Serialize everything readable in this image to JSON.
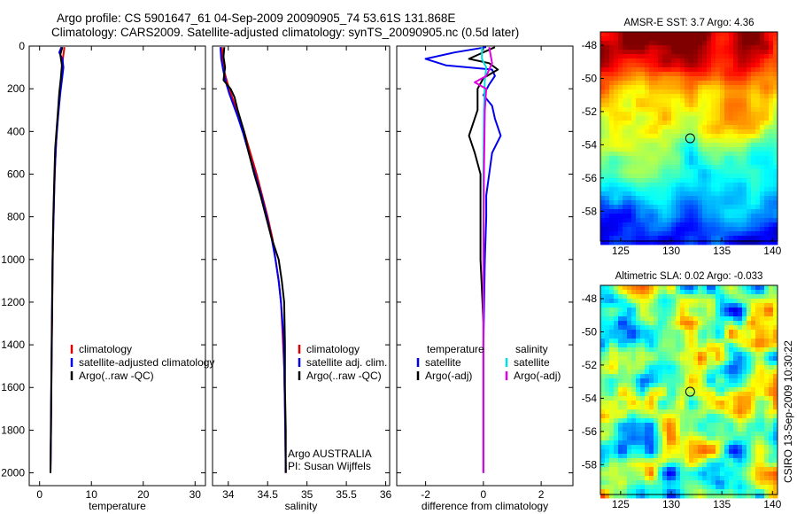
{
  "header": {
    "line1": "Argo profile: CS 5901647_61 04-Sep-2009 20090905_74 53.61S 131.868E",
    "line2": "Climatology: CARS2009. Satellite-adjusted climatology: synTS_20090905.nc (0.5d later)"
  },
  "side_text": "CSIRO 13-Sep-2009 10:30:22",
  "colors": {
    "climatology": "#e00000",
    "satellite": "#0000ee",
    "argo": "#000000",
    "sat_salinity": "#00e0e0",
    "argo_salinity": "#e000e0"
  },
  "chart_data": [
    {
      "id": "temperature",
      "type": "line",
      "xlabel": "temperature",
      "ylabel": "",
      "xlim": [
        -2,
        32
      ],
      "ylim": [
        2060,
        0
      ],
      "xticks": [
        0,
        10,
        20,
        30
      ],
      "yticks": [
        0,
        200,
        400,
        600,
        800,
        1000,
        1200,
        1400,
        1600,
        1800,
        2000
      ],
      "legend": {
        "placement": "lower-right",
        "entries": [
          "climatology",
          "satellite-adjusted climatology",
          "Argo(..raw -QC)"
        ]
      },
      "series": [
        {
          "name": "climatology",
          "color": "#e00000",
          "points": [
            [
              4.8,
              5
            ],
            [
              4.6,
              40
            ],
            [
              4.4,
              80
            ],
            [
              4.3,
              130
            ],
            [
              4.1,
              180
            ],
            [
              3.7,
              280
            ],
            [
              3.3,
              400
            ],
            [
              3.0,
              550
            ],
            [
              2.8,
              700
            ],
            [
              2.6,
              900
            ],
            [
              2.5,
              1100
            ],
            [
              2.4,
              1300
            ],
            [
              2.3,
              1500
            ],
            [
              2.2,
              1800
            ],
            [
              2.1,
              2000
            ]
          ]
        },
        {
          "name": "satellite-adjusted climatology",
          "color": "#0000ee",
          "points": [
            [
              4.2,
              5
            ],
            [
              3.8,
              30
            ],
            [
              4.4,
              60
            ],
            [
              4.6,
              100
            ],
            [
              4.3,
              160
            ],
            [
              4.0,
              220
            ],
            [
              3.6,
              320
            ],
            [
              3.2,
              450
            ],
            [
              2.9,
              600
            ],
            [
              2.7,
              800
            ],
            [
              2.5,
              1000
            ],
            [
              2.4,
              1200
            ],
            [
              2.3,
              1450
            ],
            [
              2.2,
              1700
            ],
            [
              2.1,
              2000
            ]
          ]
        },
        {
          "name": "Argo(..raw -QC)",
          "color": "#000000",
          "points": [
            [
              4.4,
              5
            ],
            [
              4.0,
              40
            ],
            [
              4.3,
              90
            ],
            [
              4.1,
              150
            ],
            [
              3.8,
              220
            ],
            [
              3.5,
              320
            ],
            [
              3.0,
              480
            ],
            [
              2.8,
              650
            ],
            [
              2.6,
              850
            ],
            [
              2.5,
              1050
            ],
            [
              2.4,
              1250
            ],
            [
              2.3,
              1500
            ],
            [
              2.2,
              1800
            ],
            [
              2.1,
              2000
            ]
          ]
        }
      ]
    },
    {
      "id": "salinity",
      "type": "line",
      "xlabel": "salinity",
      "ylabel": "",
      "xlim": [
        33.8,
        36.05
      ],
      "ylim": [
        2060,
        0
      ],
      "xticks": [
        34,
        34.5,
        35,
        35.5,
        36
      ],
      "legend": {
        "placement": "lower-right",
        "entries": [
          "climatology",
          "satellite adj. clim.",
          "Argo(..raw -QC)"
        ]
      },
      "annotation": [
        "Argo AUSTRALIA",
        "PI: Susan Wijffels"
      ],
      "series": [
        {
          "name": "climatology",
          "color": "#e00000",
          "points": [
            [
              33.92,
              5
            ],
            [
              33.93,
              60
            ],
            [
              33.95,
              120
            ],
            [
              33.98,
              160
            ],
            [
              34.02,
              210
            ],
            [
              34.07,
              260
            ],
            [
              34.13,
              320
            ],
            [
              34.2,
              400
            ],
            [
              34.28,
              500
            ],
            [
              34.36,
              600
            ],
            [
              34.43,
              700
            ],
            [
              34.5,
              800
            ],
            [
              34.56,
              900
            ],
            [
              34.6,
              1000
            ],
            [
              34.64,
              1100
            ],
            [
              34.67,
              1200
            ],
            [
              34.69,
              1350
            ],
            [
              34.71,
              1500
            ],
            [
              34.72,
              1700
            ],
            [
              34.73,
              2000
            ]
          ]
        },
        {
          "name": "satellite adj. clim.",
          "color": "#0000ee",
          "points": [
            [
              33.9,
              5
            ],
            [
              33.91,
              60
            ],
            [
              33.94,
              120
            ],
            [
              33.97,
              170
            ],
            [
              34.01,
              220
            ],
            [
              34.06,
              270
            ],
            [
              34.12,
              330
            ],
            [
              34.19,
              410
            ],
            [
              34.26,
              500
            ],
            [
              34.34,
              600
            ],
            [
              34.42,
              700
            ],
            [
              34.49,
              800
            ],
            [
              34.55,
              900
            ],
            [
              34.6,
              1000
            ],
            [
              34.64,
              1100
            ],
            [
              34.67,
              1200
            ],
            [
              34.7,
              1350
            ],
            [
              34.71,
              1500
            ],
            [
              34.72,
              1700
            ],
            [
              34.73,
              2000
            ]
          ]
        },
        {
          "name": "Argo(..raw -QC)",
          "color": "#000000",
          "points": [
            [
              33.95,
              5
            ],
            [
              33.94,
              50
            ],
            [
              33.96,
              100
            ],
            [
              33.94,
              160
            ],
            [
              34.03,
              200
            ],
            [
              34.08,
              240
            ],
            [
              34.12,
              300
            ],
            [
              34.2,
              400
            ],
            [
              34.26,
              500
            ],
            [
              34.33,
              600
            ],
            [
              34.41,
              700
            ],
            [
              34.48,
              800
            ],
            [
              34.55,
              900
            ],
            [
              34.64,
              1000
            ],
            [
              34.68,
              1100
            ],
            [
              34.71,
              1200
            ],
            [
              34.72,
              1400
            ],
            [
              34.72,
              1600
            ],
            [
              34.73,
              1800
            ],
            [
              34.73,
              2000
            ]
          ]
        }
      ]
    },
    {
      "id": "difference",
      "type": "line",
      "xlabel": "difference from climatology",
      "ylabel": "",
      "xlim": [
        -3,
        3.1
      ],
      "ylim": [
        2060,
        0
      ],
      "xticks": [
        -2,
        0,
        2
      ],
      "legend": {
        "placement": "lower-center",
        "groups": [
          {
            "header": "temperature",
            "entries": [
              "satellite",
              "Argo(-adj)"
            ]
          },
          {
            "header": "salinity",
            "entries": [
              "satellite",
              "Argo(-adj)"
            ]
          }
        ]
      },
      "series": [
        {
          "name": "temperature satellite",
          "color": "#0000ee",
          "points": [
            [
              0.1,
              5
            ],
            [
              -1.0,
              30
            ],
            [
              -2.0,
              60
            ],
            [
              -1.3,
              90
            ],
            [
              0.3,
              110
            ],
            [
              0.4,
              140
            ],
            [
              0.2,
              180
            ],
            [
              0.0,
              230
            ],
            [
              0.3,
              280
            ],
            [
              0.4,
              340
            ],
            [
              0.6,
              420
            ],
            [
              0.3,
              500
            ],
            [
              0.2,
              600
            ],
            [
              0.1,
              700
            ],
            [
              0.1,
              800
            ],
            [
              0.05,
              1000
            ],
            [
              0.0,
              1400
            ],
            [
              0.0,
              2000
            ]
          ]
        },
        {
          "name": "temperature Argo(-adj)",
          "color": "#000000",
          "points": [
            [
              0.4,
              5
            ],
            [
              -0.5,
              60
            ],
            [
              0.2,
              80
            ],
            [
              0.5,
              110
            ],
            [
              0.0,
              150
            ],
            [
              -0.2,
              200
            ],
            [
              -0.2,
              300
            ],
            [
              -0.5,
              420
            ],
            [
              -0.3,
              500
            ],
            [
              -0.1,
              600
            ],
            [
              -0.1,
              800
            ],
            [
              -0.1,
              1000
            ],
            [
              0.0,
              1300
            ],
            [
              0.0,
              1600
            ],
            [
              0.0,
              2000
            ]
          ]
        },
        {
          "name": "salinity satellite",
          "color": "#00e0e0",
          "points": [
            [
              -0.05,
              5
            ],
            [
              -0.05,
              60
            ],
            [
              0.1,
              100
            ],
            [
              0.05,
              160
            ],
            [
              0.02,
              300
            ],
            [
              0.0,
              600
            ],
            [
              0.0,
              1000
            ],
            [
              0.0,
              1400
            ],
            [
              0.0,
              2000
            ]
          ]
        },
        {
          "name": "salinity Argo(-adj)",
          "color": "#e000e0",
          "points": [
            [
              0.2,
              5
            ],
            [
              0.3,
              80
            ],
            [
              0.1,
              140
            ],
            [
              -0.3,
              170
            ],
            [
              0.1,
              200
            ],
            [
              0.05,
              300
            ],
            [
              0.02,
              600
            ],
            [
              0.0,
              1000
            ],
            [
              0.0,
              2000
            ]
          ]
        }
      ]
    },
    {
      "id": "sst_map",
      "type": "heatmap",
      "title": "AMSR-E SST: 3.7 Argo: 4.36",
      "xlim": [
        123,
        140.5
      ],
      "ylim": [
        -59.8,
        -47.2
      ],
      "xticks": [
        125,
        130,
        135,
        140
      ],
      "yticks": [
        -48,
        -50,
        -52,
        -54,
        -56,
        -58
      ],
      "marker": {
        "lon": 131.868,
        "lat": -53.61
      }
    },
    {
      "id": "sla_map",
      "type": "heatmap",
      "title": "Altimetric SLA: 0.02 Argo: -0.033",
      "xlim": [
        123,
        140.5
      ],
      "ylim": [
        -59.8,
        -47.2
      ],
      "xticks": [
        125,
        130,
        135,
        140
      ],
      "yticks": [
        -48,
        -50,
        -52,
        -54,
        -56,
        -58
      ],
      "marker": {
        "lon": 131.868,
        "lat": -53.61
      }
    }
  ]
}
